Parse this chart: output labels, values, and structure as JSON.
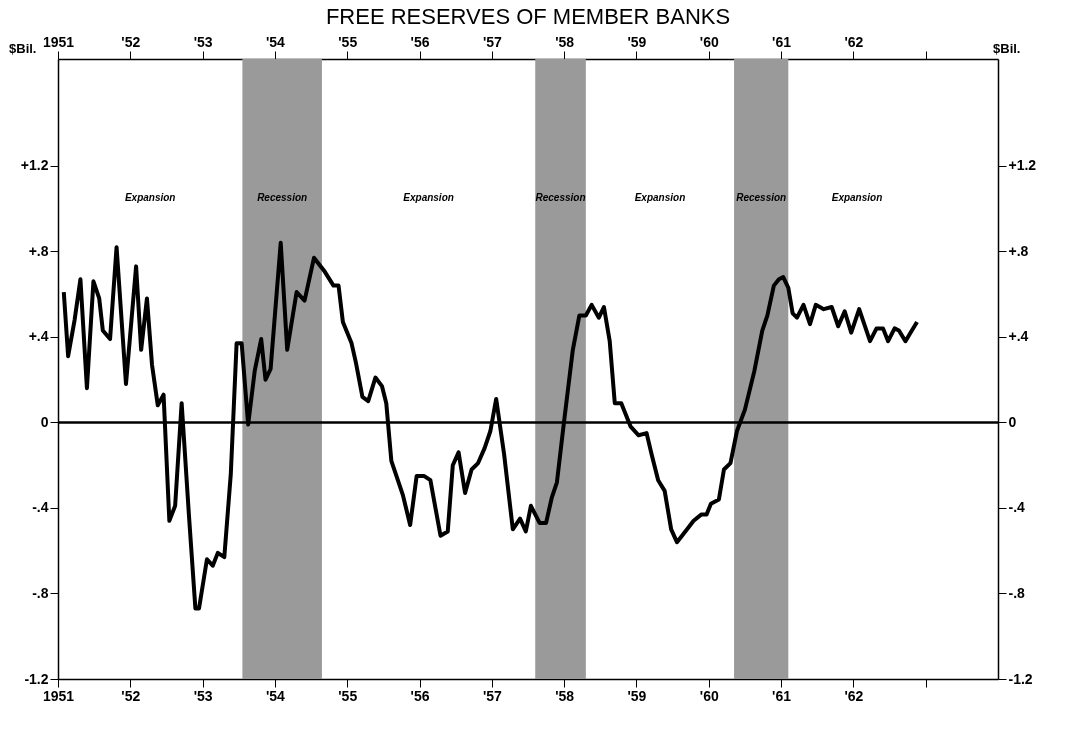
{
  "chart_data": {
    "type": "line",
    "title": "FREE RESERVES OF MEMBER BANKS",
    "ylabel": "$Bil.",
    "y2label": "$Bil.",
    "xlim": [
      1951,
      1964
    ],
    "ylim": [
      -1.2,
      1.7
    ],
    "y2lim": [
      -1.2,
      1.7
    ],
    "x2lim": [
      1951,
      1964
    ],
    "xticks": [
      1951,
      {
        "value": 1952,
        "label": "'52"
      },
      {
        "value": 1953,
        "label": "'53"
      },
      {
        "value": 1954,
        "label": "'54"
      },
      {
        "value": 1955,
        "label": "'55"
      },
      {
        "value": 1956,
        "label": "'56"
      },
      {
        "value": 1957,
        "label": "'57"
      },
      {
        "value": 1958,
        "label": "'58"
      },
      {
        "value": 1959,
        "label": "'59"
      },
      {
        "value": 1960,
        "label": "'60"
      },
      {
        "value": 1961,
        "label": "'61"
      },
      {
        "value": 1962,
        "label": "'62"
      },
      {
        "value": 1963,
        "label": null
      }
    ],
    "x2ticks": [
      1951,
      {
        "value": 1952,
        "label": "'52"
      },
      {
        "value": 1953,
        "label": "'53"
      },
      {
        "value": 1954,
        "label": "'54"
      },
      {
        "value": 1955,
        "label": "'55"
      },
      {
        "value": 1956,
        "label": "'56"
      },
      {
        "value": 1957,
        "label": "'57"
      },
      {
        "value": 1958,
        "label": "'58"
      },
      {
        "value": 1959,
        "label": "'59"
      },
      {
        "value": 1960,
        "label": "'60"
      },
      {
        "value": 1961,
        "label": "'61"
      },
      {
        "value": 1962,
        "label": "'62"
      },
      {
        "value": 1963,
        "label": null
      }
    ],
    "yticks": [
      {
        "value": -1.2,
        "label": "-1.2"
      },
      {
        "value": -0.8,
        "label": "-.8"
      },
      {
        "value": -0.4,
        "label": "-.4"
      },
      0,
      {
        "value": 0.4,
        "label": "+.4"
      },
      {
        "value": 0.8,
        "label": "+.8"
      },
      {
        "value": 1.2,
        "label": "+1.2"
      }
    ],
    "y2ticks": [
      {
        "value": -1.2,
        "label": "-1.2"
      },
      {
        "value": -0.8,
        "label": "-.8"
      },
      {
        "value": -0.4,
        "label": "-.4"
      },
      0,
      {
        "value": 0.4,
        "label": "+.4"
      },
      {
        "value": 0.8,
        "label": "+.8"
      },
      {
        "value": 1.2,
        "label": "+1.2"
      }
    ],
    "grid": false,
    "marker": "none",
    "line_style": "solid",
    "ref_lines": [
      {
        "axis": "y",
        "value": 0,
        "label": null,
        "color": "#000000"
      }
    ],
    "bands": [
      {
        "axis": "x",
        "from": 1953.55,
        "to": 1954.65,
        "label": null,
        "color": "#9a9a9a"
      },
      {
        "axis": "x",
        "from": 1957.6,
        "to": 1958.3,
        "label": null,
        "color": "#9a9a9a"
      },
      {
        "axis": "x",
        "from": 1960.35,
        "to": 1961.1,
        "label": null,
        "color": "#9a9a9a"
      }
    ],
    "annotations": [
      "Expansion",
      "Recession",
      "Expansion",
      "Recession",
      "Expansion",
      "Recession",
      "Expansion"
    ],
    "series": [
      {
        "color": "#000000",
        "x": [
          1951.08,
          1951.14,
          1951.23,
          1951.31,
          1951.4,
          1951.49,
          1951.57,
          1951.62,
          1951.72,
          1951.81,
          1951.94,
          1952.08,
          1952.15,
          1952.23,
          1952.3,
          1952.38,
          1952.46,
          1952.54,
          1952.62,
          1952.71,
          1952.81,
          1952.9,
          1952.95,
          1953.06,
          1953.14,
          1953.21,
          1953.3,
          1953.39,
          1953.47,
          1953.54,
          1953.63,
          1953.72,
          1953.81,
          1953.87,
          1953.94,
          1954.08,
          1954.17,
          1954.3,
          1954.41,
          1954.54,
          1954.68,
          1954.81,
          1954.88,
          1954.94,
          1955.06,
          1955.12,
          1955.21,
          1955.29,
          1955.39,
          1955.48,
          1955.54,
          1955.61,
          1955.77,
          1955.87,
          1955.96,
          1956.06,
          1956.15,
          1956.29,
          1956.39,
          1956.46,
          1956.54,
          1956.63,
          1956.72,
          1956.81,
          1956.9,
          1956.98,
          1957.06,
          1957.17,
          1957.29,
          1957.39,
          1957.47,
          1957.54,
          1957.66,
          1957.75,
          1957.83,
          1957.9,
          1957.99,
          1958.12,
          1958.21,
          1958.3,
          1958.38,
          1958.48,
          1958.55,
          1958.63,
          1958.7,
          1958.79,
          1958.92,
          1959.03,
          1959.14,
          1959.21,
          1959.3,
          1959.39,
          1959.48,
          1959.56,
          1959.7,
          1959.79,
          1959.9,
          1959.97,
          1960.03,
          1960.14,
          1960.21,
          1960.3,
          1960.39,
          1960.5,
          1960.63,
          1960.74,
          1960.81,
          1960.9,
          1960.97,
          1961.03,
          1961.1,
          1961.16,
          1961.22,
          1961.31,
          1961.4,
          1961.48,
          1961.59,
          1961.7,
          1961.79,
          1961.88,
          1961.97,
          1962.08,
          1962.23,
          1962.32,
          1962.41,
          1962.48,
          1962.57,
          1962.63,
          1962.72,
          1962.79,
          1962.88
        ],
        "values": [
          0.61,
          0.31,
          0.48,
          0.67,
          0.16,
          0.66,
          0.58,
          0.43,
          0.39,
          0.82,
          0.18,
          0.73,
          0.34,
          0.58,
          0.27,
          0.08,
          0.13,
          -0.46,
          -0.39,
          0.09,
          -0.43,
          -0.87,
          -0.87,
          -0.64,
          -0.67,
          -0.61,
          -0.63,
          -0.24,
          0.37,
          0.37,
          -0.01,
          0.24,
          0.39,
          0.2,
          0.25,
          0.84,
          0.34,
          0.61,
          0.57,
          0.77,
          0.71,
          0.64,
          0.64,
          0.47,
          0.37,
          0.28,
          0.12,
          0.1,
          0.21,
          0.17,
          0.09,
          -0.18,
          -0.34,
          -0.48,
          -0.25,
          -0.25,
          -0.27,
          -0.53,
          -0.51,
          -0.2,
          -0.14,
          -0.33,
          -0.22,
          -0.19,
          -0.12,
          -0.04,
          0.11,
          -0.15,
          -0.5,
          -0.45,
          -0.51,
          -0.39,
          -0.47,
          -0.47,
          -0.35,
          -0.28,
          -0.02,
          0.34,
          0.5,
          0.5,
          0.55,
          0.49,
          0.54,
          0.38,
          0.09,
          0.09,
          -0.02,
          -0.06,
          -0.05,
          -0.15,
          -0.27,
          -0.32,
          -0.5,
          -0.56,
          -0.5,
          -0.46,
          -0.43,
          -0.43,
          -0.38,
          -0.36,
          -0.22,
          -0.19,
          -0.04,
          0.06,
          0.24,
          0.43,
          0.5,
          0.64,
          0.67,
          0.68,
          0.63,
          0.51,
          0.49,
          0.55,
          0.46,
          0.55,
          0.53,
          0.54,
          0.45,
          0.52,
          0.42,
          0.53,
          0.38,
          0.44,
          0.44,
          0.38,
          0.44,
          0.43,
          0.38,
          0.42,
          0.47
        ]
      }
    ]
  }
}
